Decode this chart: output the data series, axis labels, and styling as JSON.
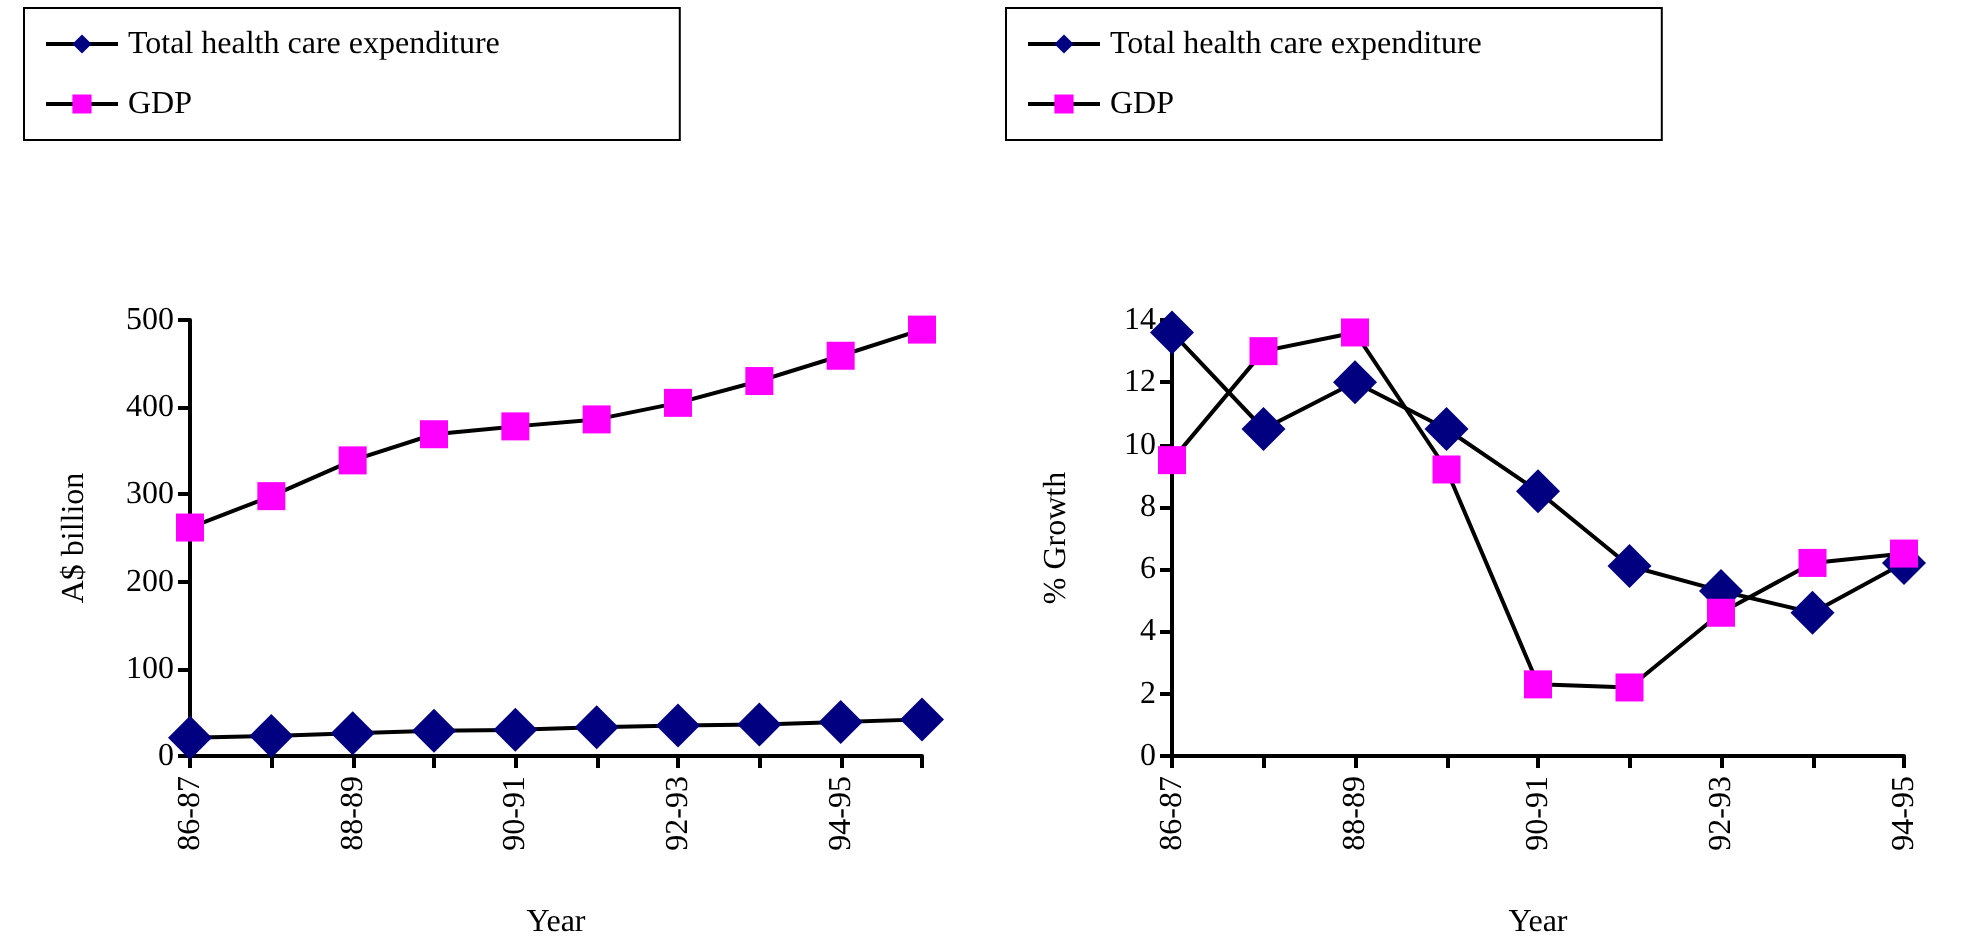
{
  "chart_data": [
    {
      "type": "line",
      "xlabel": "Year",
      "ylabel": "A$ billion",
      "categories": [
        "86-87",
        null,
        "88-89",
        null,
        "90-91",
        null,
        "92-93",
        null,
        "94-95",
        null
      ],
      "ylim": [
        0,
        500
      ],
      "yticks": [
        0,
        100,
        200,
        300,
        400,
        500
      ],
      "legend": "top left",
      "grid": false,
      "line_style": "solid",
      "series": [
        {
          "name": "Total health care expenditure",
          "color": "#000080",
          "marker": "diamond",
          "values": [
            21,
            23,
            26,
            29,
            30,
            33,
            35,
            36,
            39,
            42
          ]
        },
        {
          "name": "GDP",
          "color": "#ff00ff",
          "marker": "square",
          "values": [
            262,
            298,
            339,
            369,
            378,
            386,
            405,
            430,
            459,
            489
          ]
        }
      ]
    },
    {
      "type": "line",
      "xlabel": "Year",
      "ylabel": "% Growth",
      "categories": [
        "86-87",
        null,
        "88-89",
        null,
        "90-91",
        null,
        "92-93",
        null,
        "94-95"
      ],
      "ylim": [
        0,
        14
      ],
      "yticks": [
        0,
        2,
        4,
        6,
        8,
        10,
        12,
        14
      ],
      "legend": "top left",
      "grid": false,
      "line_style": "solid",
      "series": [
        {
          "name": "Total health care expenditure",
          "color": "#000080",
          "marker": "diamond",
          "values": [
            13.6,
            10.5,
            12.0,
            10.5,
            8.5,
            6.1,
            5.3,
            4.6,
            6.2
          ]
        },
        {
          "name": "GDP",
          "color": "#ff00ff",
          "marker": "square",
          "values": [
            9.5,
            13.0,
            13.6,
            9.2,
            2.3,
            2.2,
            4.6,
            6.2,
            6.5
          ]
        }
      ]
    }
  ]
}
